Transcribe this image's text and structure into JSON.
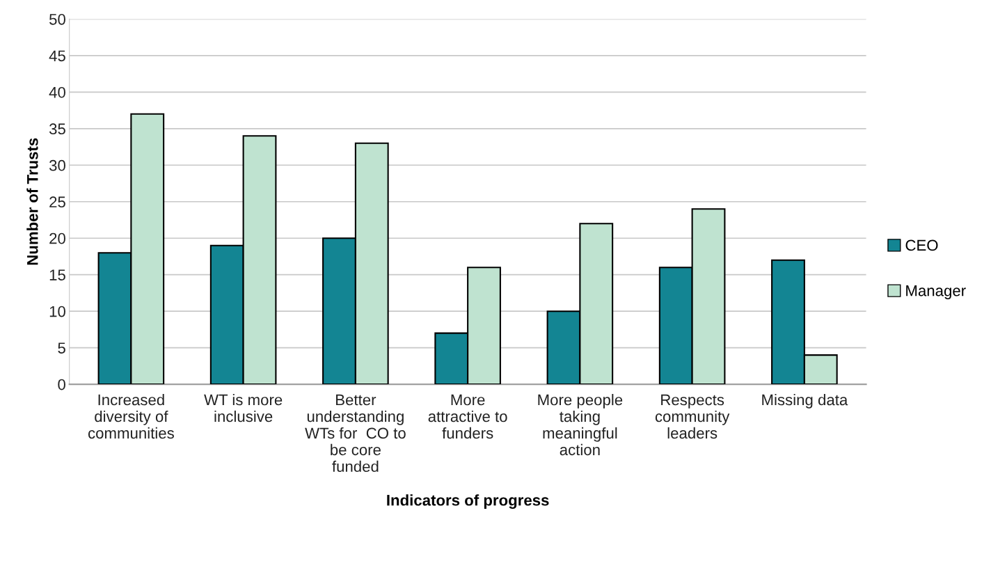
{
  "chart_data": {
    "type": "bar",
    "xlabel": "Indicators of progress",
    "ylabel": "Number of Trusts",
    "categories": [
      "Increased\ndiversity of\ncommunities",
      "WT is more\ninclusive",
      "Better\nunderstanding\nWTs for  CO to\nbe core\nfunded",
      "More\nattractive to\nfunders",
      "More people\ntaking\nmeaningful\naction",
      "Respects\ncommunity\nleaders",
      "Missing data"
    ],
    "series": [
      {
        "name": "CEO",
        "color": "#138593",
        "values": [
          18,
          19,
          20,
          7,
          10,
          16,
          17
        ]
      },
      {
        "name": "Manager",
        "color": "#bfe3d0",
        "values": [
          37,
          34,
          33,
          16,
          22,
          24,
          4
        ]
      }
    ],
    "ylim": [
      0,
      50
    ],
    "yticks": [
      0,
      5,
      10,
      15,
      20,
      25,
      30,
      35,
      40,
      45,
      50
    ],
    "grid": "y",
    "legend": "right"
  }
}
